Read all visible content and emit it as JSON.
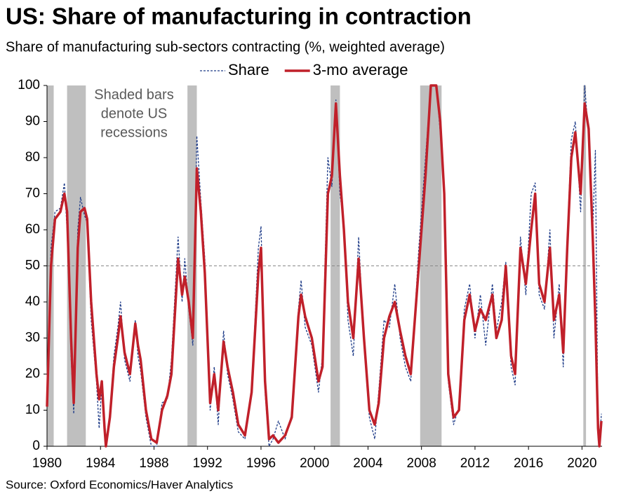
{
  "chart_data": {
    "type": "line",
    "title": "US: Share of manufacturing in contraction",
    "subtitle": "Share of manufacturing sub-sectors contracting (%, weighted average)",
    "source": "Source: Oxford Economics/Haver Analytics",
    "annotation": [
      "Shaded bars",
      "denote US",
      "recessions"
    ],
    "recessions": [
      [
        1980.0,
        1980.5
      ],
      [
        1981.5,
        1982.9
      ],
      [
        1990.5,
        1991.2
      ],
      [
        2001.2,
        2001.9
      ],
      [
        2007.9,
        2009.5
      ],
      [
        2020.1,
        2020.3
      ]
    ],
    "recession_color": "#bfbfbf",
    "hline": 50,
    "x": [
      1980.0,
      1980.3,
      1980.6,
      1981.0,
      1981.3,
      1981.5,
      1981.8,
      1982.0,
      1982.3,
      1982.5,
      1982.8,
      1983.0,
      1983.3,
      1983.7,
      1983.9,
      1984.1,
      1984.3,
      1984.4,
      1984.7,
      1985.0,
      1985.3,
      1985.5,
      1985.8,
      1986.2,
      1986.6,
      1986.8,
      1987.0,
      1987.4,
      1987.8,
      1988.2,
      1988.6,
      1989.0,
      1989.3,
      1989.8,
      1990.1,
      1990.3,
      1990.6,
      1990.9,
      1991.2,
      1991.5,
      1991.8,
      1992.2,
      1992.5,
      1992.8,
      1993.2,
      1993.5,
      1993.9,
      1994.3,
      1994.8,
      1995.3,
      1995.8,
      1996.0,
      1996.3,
      1996.6,
      1996.9,
      1997.3,
      1997.8,
      1998.3,
      1998.8,
      1999.0,
      1999.3,
      1999.8,
      2000.3,
      2000.6,
      2001.0,
      2001.3,
      2001.6,
      2001.9,
      2002.2,
      2002.5,
      2002.9,
      2003.3,
      2003.7,
      2004.1,
      2004.5,
      2004.8,
      2005.2,
      2005.6,
      2006.0,
      2006.4,
      2006.8,
      2007.2,
      2007.8,
      2008.3,
      2008.7,
      2009.1,
      2009.4,
      2009.7,
      2010.0,
      2010.4,
      2010.8,
      2011.2,
      2011.6,
      2012.0,
      2012.4,
      2012.8,
      2013.3,
      2013.6,
      2014.0,
      2014.3,
      2014.7,
      2015.0,
      2015.4,
      2015.8,
      2016.2,
      2016.5,
      2016.8,
      2017.2,
      2017.6,
      2017.9,
      2018.3,
      2018.6,
      2018.9,
      2019.2,
      2019.5,
      2019.9,
      2020.2,
      2020.5,
      2020.8,
      2021.0,
      2021.2,
      2021.3,
      2021.45
    ],
    "series": [
      {
        "name": "Share",
        "color": "#1f3c88",
        "dash": true,
        "width": 1.3,
        "values": [
          12,
          55,
          65,
          66,
          73,
          60,
          25,
          9,
          60,
          69,
          64,
          62,
          35,
          18,
          5,
          17,
          6,
          0,
          9,
          25,
          33,
          40,
          24,
          18,
          35,
          25,
          21,
          8,
          0,
          0,
          12,
          13,
          24,
          58,
          40,
          52,
          38,
          28,
          86,
          68,
          52,
          10,
          22,
          6,
          32,
          20,
          13,
          4,
          2,
          15,
          55,
          61,
          15,
          0,
          2,
          7,
          2,
          9,
          38,
          46,
          33,
          28,
          15,
          25,
          80,
          72,
          96,
          70,
          62,
          35,
          25,
          58,
          28,
          8,
          2,
          15,
          35,
          33,
          45,
          30,
          22,
          18,
          55,
          80,
          100,
          100,
          87,
          72,
          18,
          6,
          11,
          38,
          45,
          30,
          42,
          28,
          45,
          32,
          40,
          51,
          22,
          17,
          58,
          42,
          70,
          73,
          42,
          38,
          60,
          30,
          45,
          22,
          58,
          85,
          90,
          65,
          100,
          86,
          60,
          82,
          2,
          0,
          9
        ]
      },
      {
        "name": "3-mo average",
        "color": "#c0202a",
        "dash": false,
        "width": 3.5,
        "values": [
          11,
          50,
          63,
          65,
          70,
          65,
          30,
          12,
          55,
          65,
          66,
          63,
          40,
          20,
          13,
          18,
          5,
          0,
          8,
          22,
          30,
          36,
          26,
          20,
          34,
          28,
          24,
          10,
          2,
          1,
          10,
          14,
          20,
          52,
          42,
          47,
          40,
          30,
          77,
          65,
          48,
          12,
          20,
          10,
          29,
          22,
          15,
          6,
          3,
          15,
          48,
          55,
          18,
          2,
          3,
          1,
          3,
          8,
          36,
          42,
          36,
          30,
          18,
          22,
          70,
          75,
          95,
          75,
          60,
          40,
          30,
          52,
          30,
          10,
          6,
          12,
          30,
          36,
          40,
          32,
          25,
          20,
          50,
          75,
          100,
          100,
          90,
          70,
          20,
          8,
          10,
          35,
          42,
          32,
          38,
          35,
          42,
          30,
          35,
          50,
          25,
          20,
          55,
          45,
          60,
          70,
          45,
          40,
          55,
          35,
          42,
          26,
          55,
          80,
          87,
          70,
          95,
          88,
          58,
          35,
          5,
          0,
          7
        ]
      }
    ],
    "xlim": [
      1980,
      2021.5
    ],
    "xticks": [
      1980,
      1984,
      1988,
      1992,
      1996,
      2000,
      2004,
      2008,
      2012,
      2016,
      2020
    ],
    "ylim": [
      0,
      100
    ],
    "yticks": [
      0,
      10,
      20,
      30,
      40,
      50,
      60,
      70,
      80,
      90,
      100
    ]
  }
}
